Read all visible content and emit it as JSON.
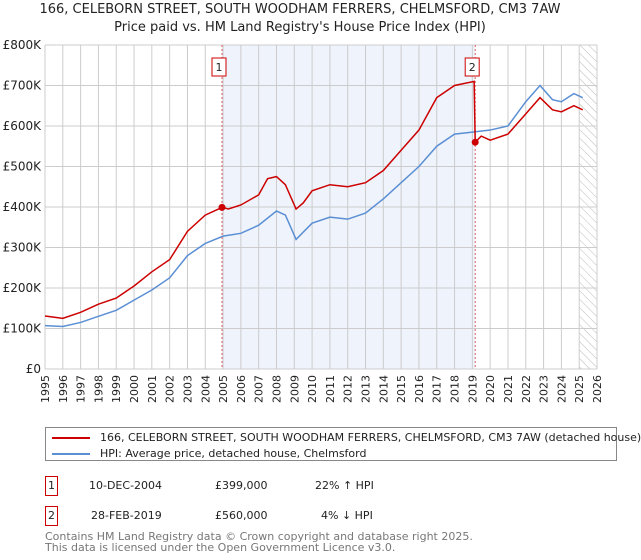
{
  "chart_data": {
    "type": "line",
    "title": "166, CELEBORN STREET, SOUTH WOODHAM FERRERS, CHELMSFORD, CM3 7AW",
    "subtitle": "Price paid vs. HM Land Registry's House Price Index (HPI)",
    "xlim": [
      1995,
      2026
    ],
    "ylim": [
      0,
      800000
    ],
    "x_ticks": [
      "1995",
      "1996",
      "1997",
      "1998",
      "1999",
      "2000",
      "2001",
      "2002",
      "2003",
      "2004",
      "2005",
      "2006",
      "2007",
      "2008",
      "2009",
      "2010",
      "2011",
      "2012",
      "2013",
      "2014",
      "2015",
      "2016",
      "2017",
      "2018",
      "2019",
      "2020",
      "2021",
      "2022",
      "2023",
      "2024",
      "2025",
      "2026"
    ],
    "y_ticks": [
      {
        "v": 0,
        "label": "£0"
      },
      {
        "v": 100000,
        "label": "£100K"
      },
      {
        "v": 200000,
        "label": "£200K"
      },
      {
        "v": 300000,
        "label": "£300K"
      },
      {
        "v": 400000,
        "label": "£400K"
      },
      {
        "v": 500000,
        "label": "£500K"
      },
      {
        "v": 600000,
        "label": "£600K"
      },
      {
        "v": 700000,
        "label": "£700K"
      },
      {
        "v": 800000,
        "label": "£800K"
      }
    ],
    "grid": true,
    "shaded_range": [
      2004.94,
      2019.16
    ],
    "hatched_from": 2025.0,
    "series": [
      {
        "name": "166, CELEBORN STREET, SOUTH WOODHAM FERRERS, CHELMSFORD, CM3 7AW (detached house)",
        "color": "#cc0000",
        "points": [
          [
            1995,
            131000
          ],
          [
            1996,
            125000
          ],
          [
            1997,
            140000
          ],
          [
            1998,
            160000
          ],
          [
            1999,
            175000
          ],
          [
            2000,
            205000
          ],
          [
            2001,
            240000
          ],
          [
            2002,
            270000
          ],
          [
            2003,
            340000
          ],
          [
            2004,
            380000
          ],
          [
            2004.94,
            399000
          ],
          [
            2005.3,
            395000
          ],
          [
            2006,
            405000
          ],
          [
            2007,
            430000
          ],
          [
            2007.5,
            470000
          ],
          [
            2008,
            475000
          ],
          [
            2008.5,
            455000
          ],
          [
            2009.1,
            395000
          ],
          [
            2009.5,
            410000
          ],
          [
            2010,
            440000
          ],
          [
            2011,
            455000
          ],
          [
            2012,
            450000
          ],
          [
            2013,
            460000
          ],
          [
            2014,
            490000
          ],
          [
            2015,
            540000
          ],
          [
            2016,
            590000
          ],
          [
            2017,
            670000
          ],
          [
            2018,
            700000
          ],
          [
            2019.1,
            710000
          ],
          [
            2019.16,
            560000
          ],
          [
            2019.5,
            575000
          ],
          [
            2020,
            565000
          ],
          [
            2021,
            580000
          ],
          [
            2022,
            630000
          ],
          [
            2022.8,
            670000
          ],
          [
            2023.5,
            640000
          ],
          [
            2024,
            635000
          ],
          [
            2024.7,
            650000
          ],
          [
            2025.2,
            640000
          ]
        ]
      },
      {
        "name": "HPI: Average price, detached house, Chelmsford",
        "color": "#5b8fd4",
        "points": [
          [
            1995,
            107000
          ],
          [
            1996,
            105000
          ],
          [
            1997,
            115000
          ],
          [
            1998,
            130000
          ],
          [
            1999,
            145000
          ],
          [
            2000,
            170000
          ],
          [
            2001,
            195000
          ],
          [
            2002,
            225000
          ],
          [
            2003,
            280000
          ],
          [
            2004,
            310000
          ],
          [
            2005,
            328000
          ],
          [
            2006,
            335000
          ],
          [
            2007,
            355000
          ],
          [
            2008,
            390000
          ],
          [
            2008.5,
            380000
          ],
          [
            2009.1,
            320000
          ],
          [
            2010,
            360000
          ],
          [
            2011,
            375000
          ],
          [
            2012,
            370000
          ],
          [
            2013,
            385000
          ],
          [
            2014,
            420000
          ],
          [
            2015,
            460000
          ],
          [
            2016,
            500000
          ],
          [
            2017,
            550000
          ],
          [
            2018,
            580000
          ],
          [
            2019,
            585000
          ],
          [
            2020,
            590000
          ],
          [
            2021,
            600000
          ],
          [
            2022,
            660000
          ],
          [
            2022.8,
            700000
          ],
          [
            2023.5,
            665000
          ],
          [
            2024,
            660000
          ],
          [
            2024.7,
            680000
          ],
          [
            2025.2,
            670000
          ]
        ]
      }
    ],
    "annotations": [
      {
        "label": "1",
        "x": 2004.94,
        "y": 399000
      },
      {
        "label": "2",
        "x": 2019.16,
        "y": 560000
      }
    ]
  },
  "legend": {
    "red": "166, CELEBORN STREET, SOUTH WOODHAM FERRERS, CHELMSFORD, CM3 7AW (detached house)",
    "blue": "HPI: Average price, detached house, Chelmsford"
  },
  "sales": [
    {
      "n": "1",
      "date": "10-DEC-2004",
      "price": "£399,000",
      "hpi": "22% ↑ HPI"
    },
    {
      "n": "2",
      "date": "28-FEB-2019",
      "price": "£560,000",
      "hpi": "4% ↓ HPI"
    }
  ],
  "footer": {
    "line1": "Contains HM Land Registry data © Crown copyright and database right 2025.",
    "line2": "This data is licensed under the Open Government Licence v3.0."
  }
}
